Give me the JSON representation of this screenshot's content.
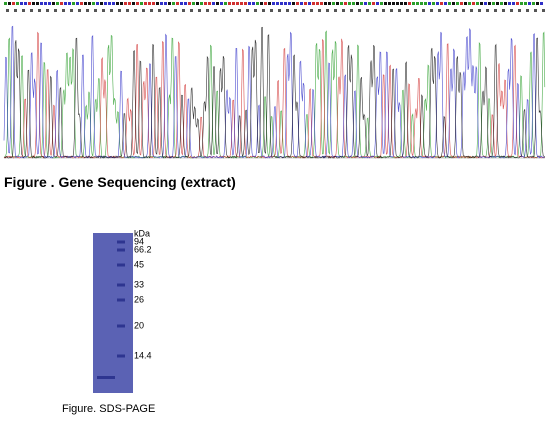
{
  "sequencing": {
    "caption": "Figure . Gene Sequencing (extract)"
  },
  "gel": {
    "unit": "kDa",
    "markers": [
      "94",
      "66.2",
      "45",
      "33",
      "26",
      "20",
      "14.4"
    ],
    "caption": "Figure. SDS-PAGE"
  }
}
